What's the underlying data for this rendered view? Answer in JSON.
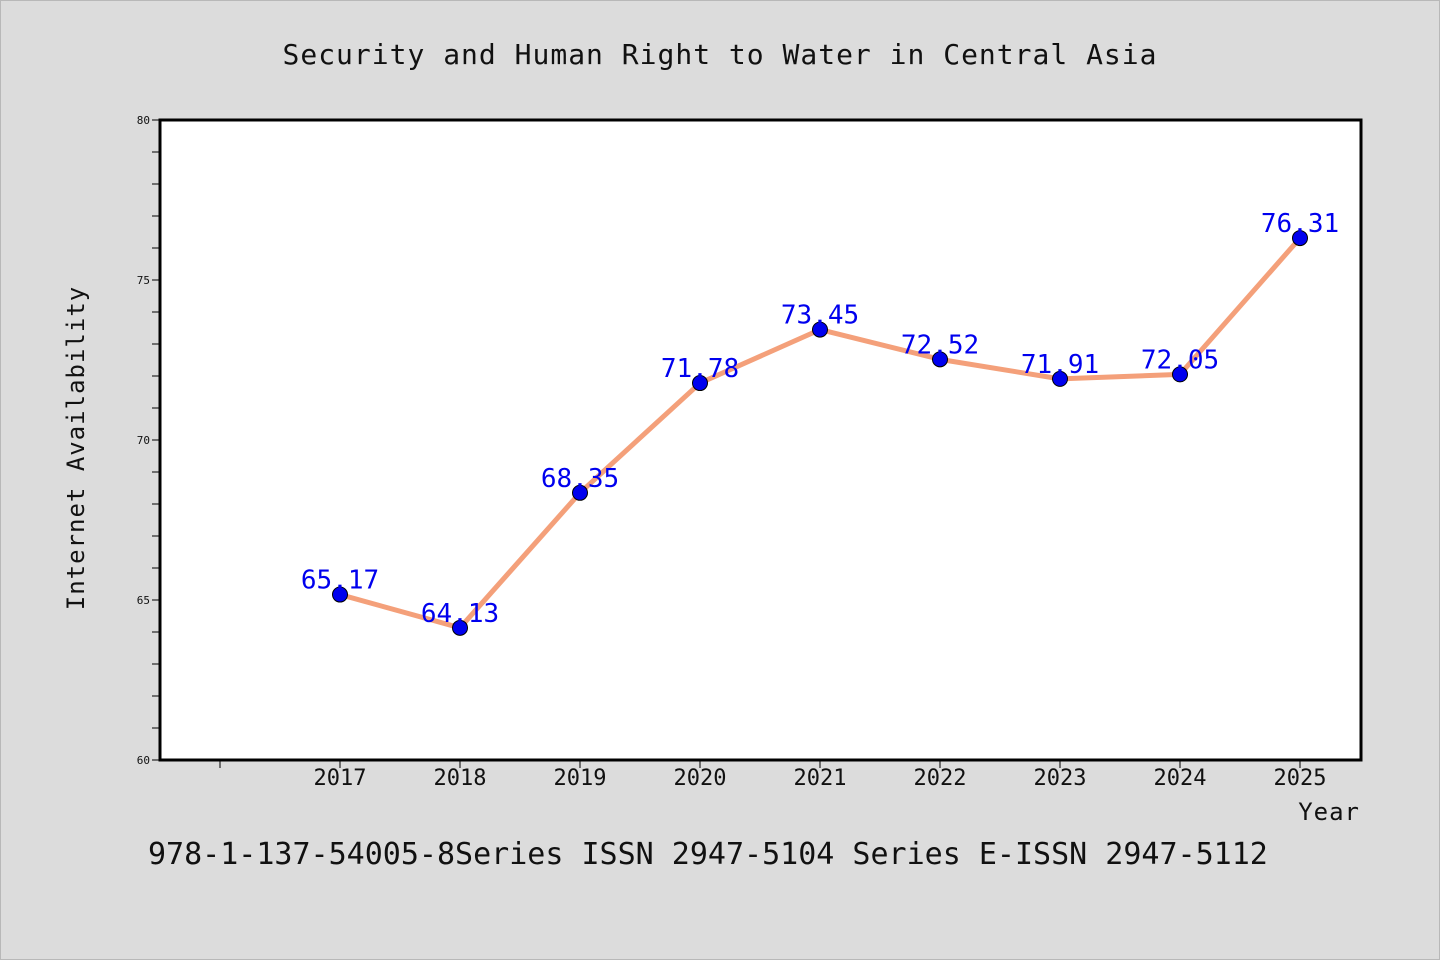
{
  "chart_data": {
    "type": "line",
    "title": "Security and Human Right to Water in Central Asia",
    "xlabel": "Year",
    "ylabel": "Internet Availability",
    "x": [
      "2017",
      "2018",
      "2019",
      "2020",
      "2021",
      "2022",
      "2023",
      "2024",
      "2025"
    ],
    "values": [
      65.17,
      64.13,
      68.35,
      71.78,
      73.45,
      72.52,
      71.91,
      72.05,
      76.31
    ],
    "data_labels": [
      "65.17",
      "64.13",
      "68.35",
      "71.78",
      "73.45",
      "72.52",
      "71.91",
      "72.05",
      "76.31"
    ],
    "ylim": [
      60,
      80
    ],
    "yticks": [
      "60",
      "65",
      "70",
      "75",
      "80"
    ],
    "grid": false,
    "line_color": "#f4a07a",
    "marker_color": "#0000ee",
    "label_color": "#0000ee"
  },
  "footer": "978-1-137-54005-8Series ISSN 2947-5104 Series E-ISSN 2947-5112"
}
